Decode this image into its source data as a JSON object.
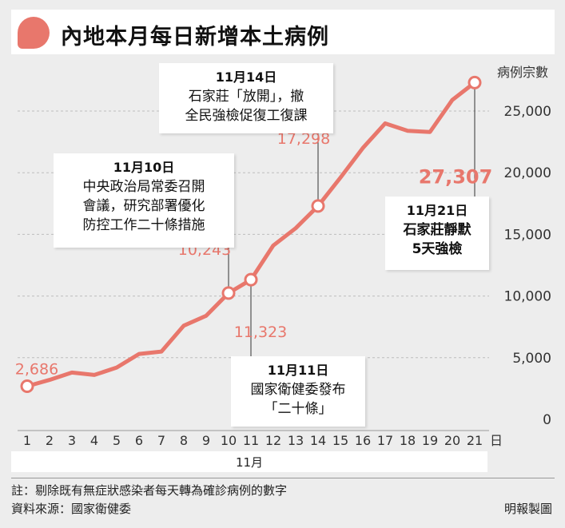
{
  "title": "內地本月每日新增本土病例",
  "colors": {
    "accent": "#e8776c",
    "line": "#e8776c",
    "label": "#e8776c"
  },
  "chart_data": {
    "type": "line",
    "title": "內地本月每日新增本土病例",
    "ylabel": "病例宗數",
    "xlabel": "11月",
    "x_unit": "日",
    "x": [
      1,
      2,
      3,
      4,
      5,
      6,
      7,
      8,
      9,
      10,
      11,
      12,
      13,
      14,
      15,
      16,
      17,
      18,
      19,
      20,
      21
    ],
    "values": [
      2686,
      3200,
      3800,
      3600,
      4200,
      5300,
      5500,
      7600,
      8400,
      10243,
      11323,
      14100,
      15500,
      17298,
      19600,
      22000,
      24000,
      23400,
      23300,
      25900,
      27307
    ],
    "ylim": [
      0,
      30000
    ],
    "yticks": [
      0,
      5000,
      10000,
      15000,
      20000,
      25000
    ],
    "ytick_labels": [
      "0",
      "5,000",
      "10,000",
      "15,000",
      "20,000",
      "25,000"
    ],
    "point_labels": [
      {
        "x": 1,
        "text": "2,686"
      },
      {
        "x": 10,
        "text": "10,243"
      },
      {
        "x": 11,
        "text": "11,323"
      },
      {
        "x": 14,
        "text": "17,298"
      },
      {
        "x": 21,
        "text": "27,307"
      }
    ],
    "markers": [
      1,
      10,
      11,
      14,
      21
    ],
    "grid": true
  },
  "annotations": [
    {
      "id": "nov10",
      "date": "11月10日",
      "text": "中央政治局常委召開\n會議，研究部署優化\n防控工作二十條措施"
    },
    {
      "id": "nov11",
      "date": "11月11日",
      "text": "國家衛健委發布\n「二十條」"
    },
    {
      "id": "nov14",
      "date": "11月14日",
      "text": "石家莊「放開」，撤\n全民強檢促復工復課"
    },
    {
      "id": "nov21",
      "date": "11月21日",
      "text": "石家莊靜默\n5天強檢"
    }
  ],
  "footer": {
    "note": "註：剔除既有無症狀感染者每天轉為確診病例的數字",
    "source": "資料來源：國家衛健委",
    "credit": "明報製圖"
  }
}
